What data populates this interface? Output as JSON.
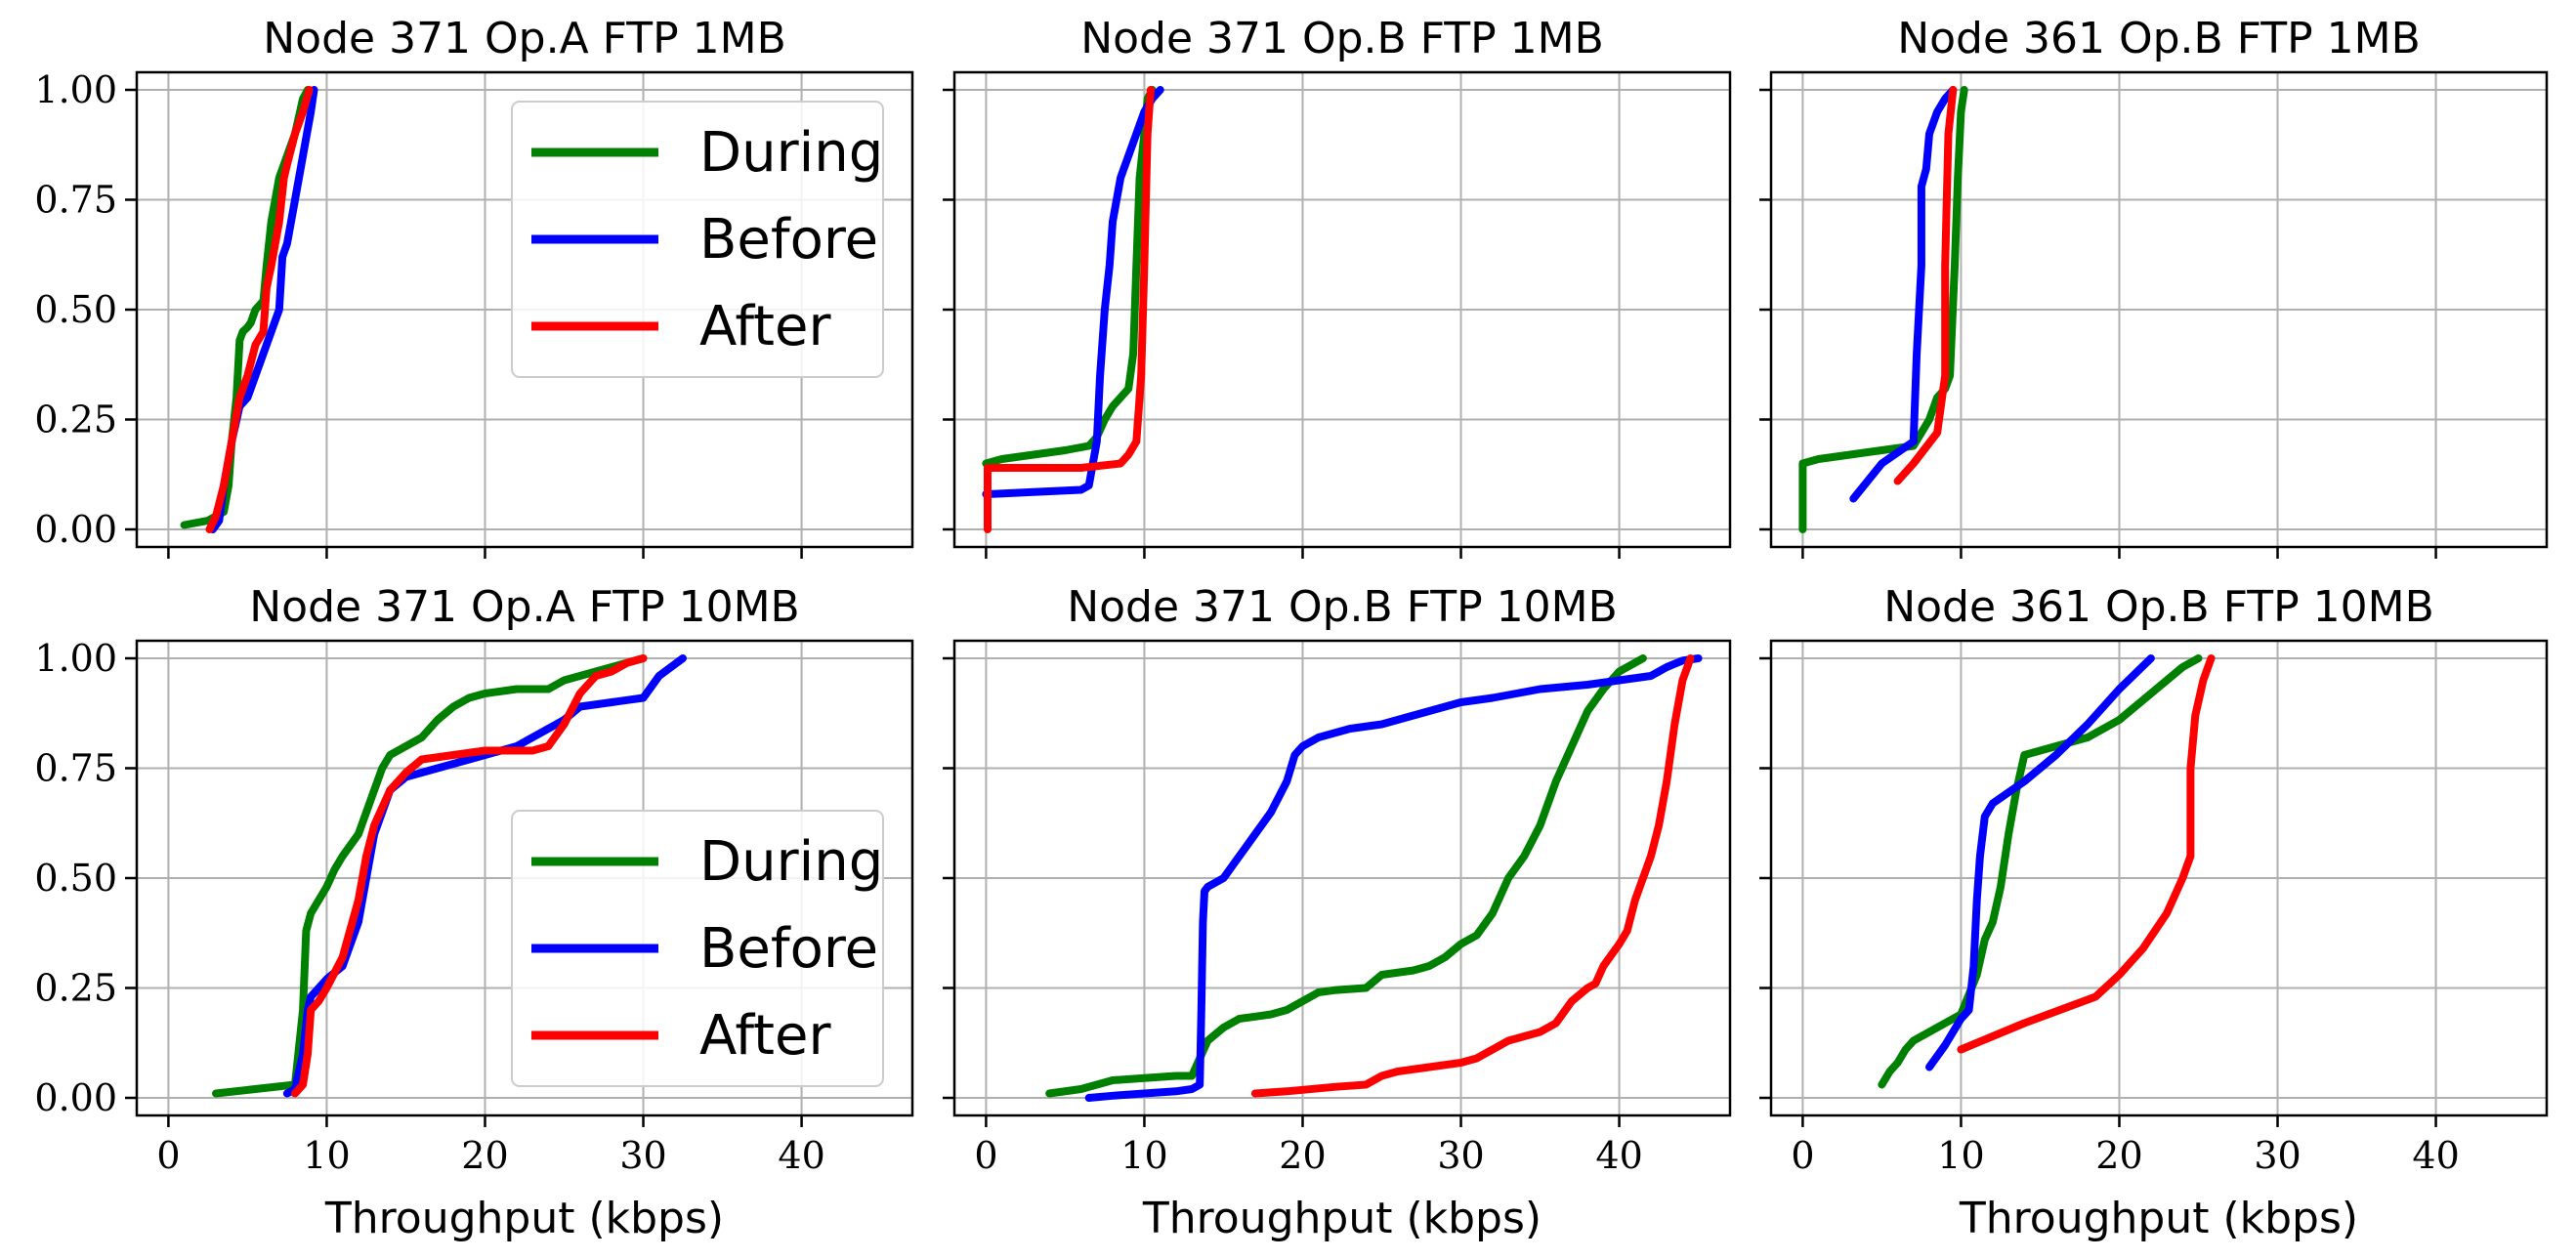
{
  "chart_data": [
    {
      "type": "line",
      "title": "Node 371 Op.A FTP 1MB",
      "xlabel": "",
      "ylabel": "",
      "xlim": [
        -2,
        47
      ],
      "ylim": [
        -0.04,
        1.04
      ],
      "xticks": [
        0,
        10,
        20,
        30,
        40
      ],
      "show_xtick_labels": false,
      "yticks": [
        "0.00",
        "0.25",
        "0.50",
        "0.75",
        "1.00"
      ],
      "show_ytick_labels": true,
      "grid": true,
      "legend": "top-right",
      "series": [
        {
          "name": "During",
          "color": "#008000",
          "x": [
            1.0,
            2.5,
            3.5,
            3.8,
            4.0,
            4.3,
            4.5,
            4.7,
            5.0,
            5.2,
            5.5,
            6.0,
            6.2,
            6.5,
            7.0,
            7.5,
            8.0,
            8.5,
            8.8
          ],
          "y": [
            0.01,
            0.02,
            0.04,
            0.1,
            0.2,
            0.3,
            0.43,
            0.45,
            0.46,
            0.47,
            0.5,
            0.52,
            0.6,
            0.7,
            0.8,
            0.85,
            0.9,
            0.98,
            1.0
          ]
        },
        {
          "name": "Before",
          "color": "#0000ff",
          "x": [
            2.8,
            3.2,
            3.5,
            4.0,
            4.5,
            5.0,
            5.5,
            6.0,
            6.5,
            7.0,
            7.2,
            7.5,
            8.0,
            8.5,
            9.0,
            9.2
          ],
          "y": [
            0.0,
            0.02,
            0.1,
            0.2,
            0.28,
            0.3,
            0.35,
            0.4,
            0.45,
            0.5,
            0.62,
            0.65,
            0.75,
            0.85,
            0.95,
            1.0
          ]
        },
        {
          "name": "After",
          "color": "#ff0000",
          "x": [
            2.6,
            3.0,
            3.5,
            4.0,
            4.5,
            5.0,
            5.5,
            6.0,
            6.2,
            6.5,
            7.0,
            7.3,
            7.5,
            8.0,
            8.5,
            8.9
          ],
          "y": [
            0.0,
            0.03,
            0.1,
            0.2,
            0.3,
            0.35,
            0.42,
            0.45,
            0.55,
            0.6,
            0.7,
            0.8,
            0.83,
            0.9,
            0.95,
            1.0
          ]
        }
      ]
    },
    {
      "type": "line",
      "title": "Node 371 Op.B FTP 1MB",
      "xlabel": "",
      "ylabel": "",
      "xlim": [
        -2,
        47
      ],
      "ylim": [
        -0.04,
        1.04
      ],
      "xticks": [
        0,
        10,
        20,
        30,
        40
      ],
      "show_xtick_labels": false,
      "yticks": [
        "0.00",
        "0.25",
        "0.50",
        "0.75",
        "1.00"
      ],
      "show_ytick_labels": false,
      "grid": true,
      "legend": "none",
      "series": [
        {
          "name": "During",
          "color": "#008000",
          "x": [
            0.0,
            1.0,
            3.0,
            5.0,
            6.5,
            7.0,
            7.5,
            8.0,
            8.5,
            9.0,
            9.3,
            9.5,
            9.7,
            10.0,
            10.2,
            10.5
          ],
          "y": [
            0.15,
            0.16,
            0.17,
            0.18,
            0.19,
            0.21,
            0.25,
            0.28,
            0.3,
            0.32,
            0.4,
            0.6,
            0.8,
            0.9,
            0.98,
            1.0
          ]
        },
        {
          "name": "Before",
          "color": "#0000ff",
          "x": [
            0.0,
            3.0,
            6.0,
            6.5,
            7.0,
            7.2,
            7.5,
            7.8,
            8.0,
            8.5,
            9.0,
            9.5,
            10.0,
            10.5,
            11.0
          ],
          "y": [
            0.08,
            0.085,
            0.09,
            0.1,
            0.2,
            0.35,
            0.5,
            0.6,
            0.7,
            0.8,
            0.85,
            0.9,
            0.95,
            0.98,
            1.0
          ]
        },
        {
          "name": "After",
          "color": "#ff0000",
          "x": [
            0.1,
            0.1,
            3.0,
            6.0,
            8.5,
            9.0,
            9.5,
            9.8,
            10.0,
            10.2,
            10.4
          ],
          "y": [
            0.0,
            0.14,
            0.14,
            0.14,
            0.15,
            0.17,
            0.2,
            0.35,
            0.6,
            0.9,
            1.0
          ]
        }
      ]
    },
    {
      "type": "line",
      "title": "Node 361 Op.B FTP 1MB",
      "xlabel": "",
      "ylabel": "",
      "xlim": [
        -2,
        47
      ],
      "ylim": [
        -0.04,
        1.04
      ],
      "xticks": [
        0,
        10,
        20,
        30,
        40
      ],
      "show_xtick_labels": false,
      "yticks": [
        "0.00",
        "0.25",
        "0.50",
        "0.75",
        "1.00"
      ],
      "show_ytick_labels": false,
      "grid": true,
      "legend": "none",
      "series": [
        {
          "name": "During",
          "color": "#008000",
          "x": [
            0.0,
            0.0,
            1.0,
            3.0,
            5.0,
            7.0,
            8.0,
            8.5,
            9.0,
            9.3,
            9.6,
            9.8,
            10.0,
            10.2
          ],
          "y": [
            0.0,
            0.15,
            0.16,
            0.17,
            0.18,
            0.19,
            0.25,
            0.3,
            0.32,
            0.35,
            0.6,
            0.8,
            0.95,
            1.0
          ]
        },
        {
          "name": "Before",
          "color": "#0000ff",
          "x": [
            3.2,
            5.0,
            7.0,
            7.2,
            7.5,
            7.5,
            7.8,
            8.0,
            8.5,
            9.0,
            9.5
          ],
          "y": [
            0.07,
            0.15,
            0.2,
            0.4,
            0.6,
            0.78,
            0.82,
            0.9,
            0.95,
            0.98,
            1.0
          ]
        },
        {
          "name": "After",
          "color": "#ff0000",
          "x": [
            6.0,
            7.0,
            8.5,
            9.0,
            9.0,
            9.2,
            9.5
          ],
          "y": [
            0.11,
            0.15,
            0.22,
            0.35,
            0.6,
            0.9,
            1.0
          ]
        }
      ]
    },
    {
      "type": "line",
      "title": "Node 371 Op.A FTP 10MB",
      "xlabel": "Throughput (kbps)",
      "ylabel": "",
      "xlim": [
        -2,
        47
      ],
      "ylim": [
        -0.04,
        1.04
      ],
      "xticks": [
        0,
        10,
        20,
        30,
        40
      ],
      "show_xtick_labels": true,
      "yticks": [
        "0.00",
        "0.25",
        "0.50",
        "0.75",
        "1.00"
      ],
      "show_ytick_labels": true,
      "grid": true,
      "legend": "bottom-right",
      "series": [
        {
          "name": "During",
          "color": "#008000",
          "x": [
            3.0,
            8.0,
            8.5,
            8.7,
            9.0,
            9.5,
            10.0,
            10.5,
            11.0,
            12.0,
            12.5,
            13.0,
            13.5,
            14.0,
            15.0,
            16.0,
            17.0,
            18.0,
            19.0,
            20.0,
            22.0,
            24.0,
            25.0,
            27.0,
            28.0,
            29.0,
            30.0
          ],
          "y": [
            0.01,
            0.03,
            0.2,
            0.38,
            0.42,
            0.45,
            0.48,
            0.52,
            0.55,
            0.6,
            0.65,
            0.7,
            0.75,
            0.78,
            0.8,
            0.82,
            0.86,
            0.89,
            0.91,
            0.92,
            0.93,
            0.93,
            0.95,
            0.97,
            0.98,
            0.99,
            1.0
          ]
        },
        {
          "name": "Before",
          "color": "#0000ff",
          "x": [
            7.5,
            8.0,
            8.5,
            8.8,
            9.0,
            9.5,
            10.0,
            11.0,
            12.0,
            12.5,
            13.0,
            14.0,
            15.0,
            16.0,
            18.0,
            20.0,
            22.0,
            23.0,
            24.0,
            25.0,
            26.0,
            28.0,
            30.0,
            31.0,
            32.5
          ],
          "y": [
            0.01,
            0.02,
            0.1,
            0.2,
            0.23,
            0.25,
            0.27,
            0.3,
            0.4,
            0.5,
            0.6,
            0.7,
            0.73,
            0.74,
            0.76,
            0.78,
            0.8,
            0.82,
            0.84,
            0.86,
            0.89,
            0.9,
            0.91,
            0.96,
            1.0
          ]
        },
        {
          "name": "After",
          "color": "#ff0000",
          "x": [
            8.0,
            8.5,
            8.8,
            9.0,
            9.5,
            10.0,
            11.0,
            12.0,
            12.5,
            13.0,
            14.0,
            15.0,
            16.0,
            18.0,
            20.0,
            22.0,
            23.0,
            24.0,
            25.0,
            26.0,
            27.0,
            28.0,
            29.0,
            30.0
          ],
          "y": [
            0.01,
            0.03,
            0.1,
            0.2,
            0.22,
            0.25,
            0.32,
            0.45,
            0.55,
            0.62,
            0.7,
            0.74,
            0.77,
            0.78,
            0.79,
            0.79,
            0.79,
            0.8,
            0.85,
            0.92,
            0.96,
            0.97,
            0.99,
            1.0
          ]
        }
      ]
    },
    {
      "type": "line",
      "title": "Node 371 Op.B FTP 10MB",
      "xlabel": "Throughput (kbps)",
      "ylabel": "",
      "xlim": [
        -2,
        47
      ],
      "ylim": [
        -0.04,
        1.04
      ],
      "xticks": [
        0,
        10,
        20,
        30,
        40
      ],
      "show_xtick_labels": true,
      "yticks": [
        "0.00",
        "0.25",
        "0.50",
        "0.75",
        "1.00"
      ],
      "show_ytick_labels": false,
      "grid": true,
      "legend": "none",
      "series": [
        {
          "name": "During",
          "color": "#008000",
          "x": [
            4.0,
            6.0,
            8.0,
            10.0,
            12.0,
            13.0,
            14.0,
            15.0,
            16.0,
            17.0,
            18.0,
            19.0,
            20.0,
            21.0,
            22.0,
            24.0,
            25.0,
            27.0,
            28.0,
            29.0,
            30.0,
            31.0,
            32.0,
            33.0,
            34.0,
            35.0,
            36.0,
            37.0,
            38.0,
            39.0,
            40.0,
            41.0,
            41.5
          ],
          "y": [
            0.01,
            0.02,
            0.04,
            0.045,
            0.05,
            0.05,
            0.13,
            0.16,
            0.18,
            0.185,
            0.19,
            0.2,
            0.22,
            0.24,
            0.245,
            0.25,
            0.28,
            0.29,
            0.3,
            0.32,
            0.35,
            0.37,
            0.42,
            0.5,
            0.55,
            0.62,
            0.72,
            0.8,
            0.88,
            0.93,
            0.97,
            0.99,
            1.0
          ]
        },
        {
          "name": "Before",
          "color": "#0000ff",
          "x": [
            6.5,
            8.0,
            10.0,
            12.0,
            13.0,
            13.5,
            13.6,
            13.7,
            13.8,
            14.0,
            15.0,
            16.0,
            17.0,
            18.0,
            19.0,
            19.5,
            20.0,
            21.0,
            23.0,
            25.0,
            26.0,
            27.0,
            28.0,
            30.0,
            32.0,
            35.0,
            38.0,
            40.0,
            42.0,
            43.0,
            44.0,
            45.0
          ],
          "y": [
            0.0,
            0.005,
            0.01,
            0.015,
            0.02,
            0.03,
            0.2,
            0.4,
            0.47,
            0.48,
            0.5,
            0.55,
            0.6,
            0.65,
            0.72,
            0.78,
            0.8,
            0.82,
            0.84,
            0.85,
            0.86,
            0.87,
            0.88,
            0.9,
            0.91,
            0.93,
            0.94,
            0.95,
            0.96,
            0.98,
            0.995,
            1.0
          ]
        },
        {
          "name": "After",
          "color": "#ff0000",
          "x": [
            17.0,
            19.0,
            22.0,
            24.0,
            25.0,
            26.0,
            28.0,
            30.0,
            31.0,
            33.0,
            35.0,
            36.0,
            37.0,
            38.0,
            38.5,
            39.0,
            40.0,
            40.5,
            41.0,
            41.5,
            42.0,
            42.5,
            43.0,
            43.5,
            44.0,
            44.5
          ],
          "y": [
            0.01,
            0.015,
            0.025,
            0.03,
            0.05,
            0.06,
            0.07,
            0.08,
            0.09,
            0.13,
            0.15,
            0.17,
            0.22,
            0.25,
            0.26,
            0.3,
            0.35,
            0.38,
            0.45,
            0.5,
            0.55,
            0.62,
            0.72,
            0.85,
            0.95,
            1.0
          ]
        }
      ]
    },
    {
      "type": "line",
      "title": "Node 361 Op.B FTP 10MB",
      "xlabel": "Throughput (kbps)",
      "ylabel": "",
      "xlim": [
        -2,
        47
      ],
      "ylim": [
        -0.04,
        1.04
      ],
      "xticks": [
        0,
        10,
        20,
        30,
        40
      ],
      "show_xtick_labels": true,
      "yticks": [
        "0.00",
        "0.25",
        "0.50",
        "0.75",
        "1.00"
      ],
      "show_ytick_labels": false,
      "grid": true,
      "legend": "none",
      "series": [
        {
          "name": "During",
          "color": "#008000",
          "x": [
            5.0,
            5.5,
            6.0,
            6.5,
            7.0,
            8.0,
            9.0,
            10.0,
            11.0,
            11.5,
            12.0,
            12.5,
            13.0,
            13.5,
            14.0,
            16.0,
            18.0,
            19.0,
            20.0,
            21.0,
            22.0,
            23.0,
            24.0,
            25.0
          ],
          "y": [
            0.03,
            0.06,
            0.08,
            0.11,
            0.13,
            0.15,
            0.17,
            0.19,
            0.28,
            0.36,
            0.4,
            0.48,
            0.6,
            0.7,
            0.78,
            0.8,
            0.82,
            0.84,
            0.86,
            0.89,
            0.92,
            0.95,
            0.98,
            1.0
          ]
        },
        {
          "name": "Before",
          "color": "#0000ff",
          "x": [
            8.0,
            9.0,
            10.0,
            10.5,
            10.8,
            11.0,
            11.2,
            11.5,
            12.0,
            14.0,
            16.0,
            18.0,
            20.0,
            22.0
          ],
          "y": [
            0.07,
            0.12,
            0.18,
            0.2,
            0.3,
            0.45,
            0.55,
            0.64,
            0.67,
            0.72,
            0.78,
            0.85,
            0.93,
            1.0
          ]
        },
        {
          "name": "After",
          "color": "#ff0000",
          "x": [
            10.0,
            14.0,
            18.5,
            20.0,
            21.5,
            23.0,
            24.0,
            24.5,
            24.5,
            24.8,
            25.3,
            25.8
          ],
          "y": [
            0.11,
            0.17,
            0.23,
            0.28,
            0.34,
            0.42,
            0.5,
            0.55,
            0.75,
            0.87,
            0.95,
            1.0
          ]
        }
      ]
    }
  ]
}
